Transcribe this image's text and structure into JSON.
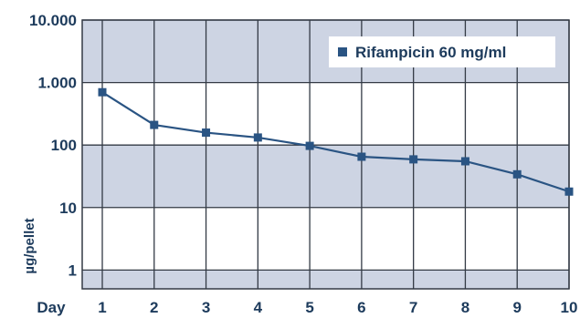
{
  "chart_data": {
    "type": "line",
    "x_label": "Day",
    "y_label": "µg/pellet",
    "y_scale": "log",
    "ylim": [
      0.5,
      10000
    ],
    "y_ticks": [
      1,
      10,
      100,
      1000,
      10000
    ],
    "y_tick_labels": [
      "1",
      "10",
      "100",
      "1.000",
      "10.000"
    ],
    "x_ticks": [
      "1",
      "2",
      "3",
      "4",
      "5",
      "6",
      "7",
      "8",
      "9",
      "10"
    ],
    "series": [
      {
        "name": "Rifampicin 60 mg/ml",
        "x": [
          1,
          2,
          3,
          4,
          5,
          6,
          7,
          8,
          9,
          10
        ],
        "y": [
          700,
          210,
          158,
          132,
          97,
          65,
          59,
          55,
          34,
          18
        ]
      }
    ],
    "legend_position": "top-right",
    "grid": true,
    "band_color": "#cdd4e3",
    "plot_background": "#ffffff",
    "line_color": "#2a5483",
    "text_color": "#1d3b5c"
  }
}
